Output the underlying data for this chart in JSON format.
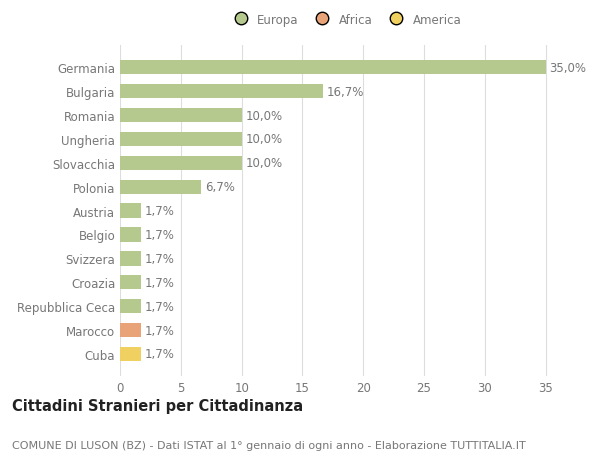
{
  "categories": [
    "Germania",
    "Bulgaria",
    "Romania",
    "Ungheria",
    "Slovacchia",
    "Polonia",
    "Austria",
    "Belgio",
    "Svizzera",
    "Croazia",
    "Repubblica Ceca",
    "Marocco",
    "Cuba"
  ],
  "values": [
    35.0,
    16.7,
    10.0,
    10.0,
    10.0,
    6.7,
    1.7,
    1.7,
    1.7,
    1.7,
    1.7,
    1.7,
    1.7
  ],
  "labels": [
    "35,0%",
    "16,7%",
    "10,0%",
    "10,0%",
    "10,0%",
    "6,7%",
    "1,7%",
    "1,7%",
    "1,7%",
    "1,7%",
    "1,7%",
    "1,7%",
    "1,7%"
  ],
  "colors": [
    "#b5c98e",
    "#b5c98e",
    "#b5c98e",
    "#b5c98e",
    "#b5c98e",
    "#b5c98e",
    "#b5c98e",
    "#b5c98e",
    "#b5c98e",
    "#b5c98e",
    "#b5c98e",
    "#e8a478",
    "#f0d060"
  ],
  "legend_labels": [
    "Europa",
    "Africa",
    "America"
  ],
  "legend_colors": [
    "#b5c98e",
    "#e8a478",
    "#f0d060"
  ],
  "title": "Cittadini Stranieri per Cittadinanza",
  "subtitle": "COMUNE DI LUSON (BZ) - Dati ISTAT al 1° gennaio di ogni anno - Elaborazione TUTTITALIA.IT",
  "xlim": [
    0,
    37
  ],
  "xticks": [
    0,
    5,
    10,
    15,
    20,
    25,
    30,
    35
  ],
  "background_color": "#ffffff",
  "grid_color": "#dddddd",
  "bar_height": 0.6,
  "label_fontsize": 8.5,
  "tick_fontsize": 8.5,
  "title_fontsize": 10.5,
  "subtitle_fontsize": 8.0,
  "text_color": "#777777"
}
